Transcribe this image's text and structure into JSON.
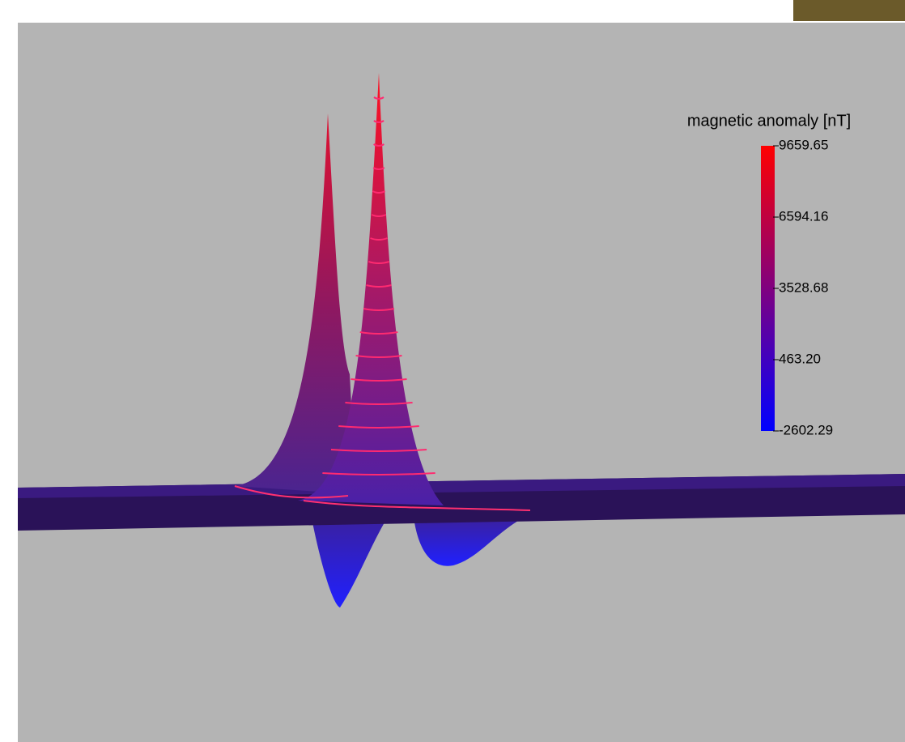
{
  "chart_data": {
    "type": "surface3d",
    "colorbar_label": "magnetic anomaly [nT]",
    "colorbar_lim": [
      -2602.29,
      9659.65
    ],
    "colorbar_ticks": [
      -2602.29,
      {
        "value": 463.2,
        "label": "463.20"
      },
      3528.68,
      6594.16,
      9659.65
    ],
    "colormap": [
      "#0000ff",
      "#ff0000"
    ]
  }
}
